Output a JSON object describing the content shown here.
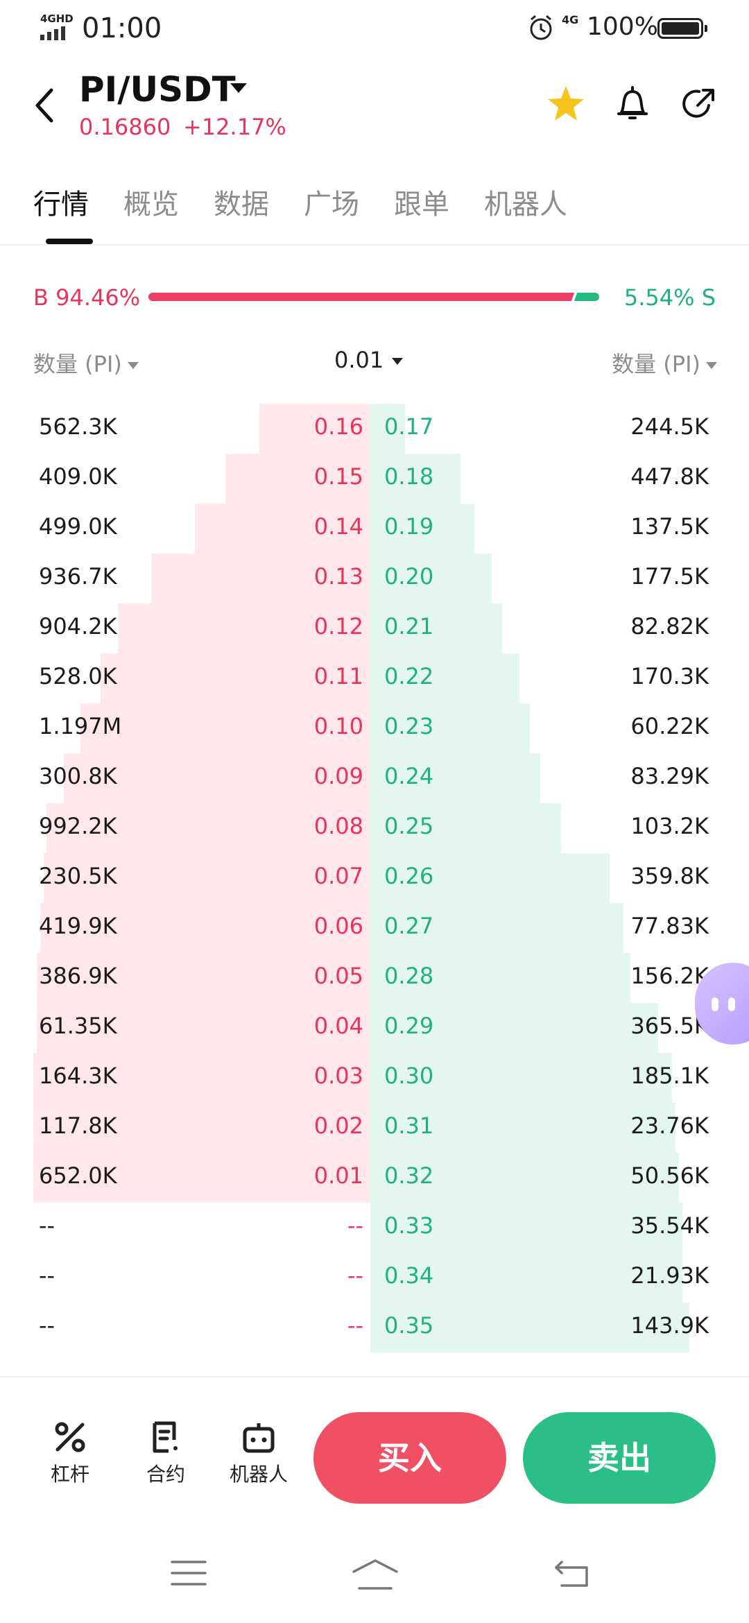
{
  "status_bar": {
    "network": "4GHD",
    "time": "01:00",
    "lte": "4G",
    "battery": "100%"
  },
  "header": {
    "pair": "PI/USDT",
    "price": "0.16860",
    "change": "+12.17%"
  },
  "tabs": [
    "行情",
    "概览",
    "数据",
    "广场",
    "跟单",
    "机器人"
  ],
  "ratio": {
    "buy_label": "B 94.46%",
    "sell_label": "5.54% S",
    "buy_fraction": 0.9446
  },
  "columns": {
    "left": "数量 (PI)",
    "precision": "0.01",
    "right": "数量 (PI)"
  },
  "order_book": {
    "rows": [
      {
        "bid_qty": "562.3K",
        "bid_price": "0.16",
        "ask_price": "0.17",
        "ask_qty": "244.5K",
        "bid_depth": 0.33,
        "ask_depth": 0.1
      },
      {
        "bid_qty": "409.0K",
        "bid_price": "0.15",
        "ask_price": "0.18",
        "ask_qty": "447.8K",
        "bid_depth": 0.43,
        "ask_depth": 0.26
      },
      {
        "bid_qty": "499.0K",
        "bid_price": "0.14",
        "ask_price": "0.19",
        "ask_qty": "137.5K",
        "bid_depth": 0.52,
        "ask_depth": 0.3
      },
      {
        "bid_qty": "936.7K",
        "bid_price": "0.13",
        "ask_price": "0.20",
        "ask_qty": "177.5K",
        "bid_depth": 0.65,
        "ask_depth": 0.35
      },
      {
        "bid_qty": "904.2K",
        "bid_price": "0.12",
        "ask_price": "0.21",
        "ask_qty": "82.82K",
        "bid_depth": 0.75,
        "ask_depth": 0.38
      },
      {
        "bid_qty": "528.0K",
        "bid_price": "0.11",
        "ask_price": "0.22",
        "ask_qty": "170.3K",
        "bid_depth": 0.8,
        "ask_depth": 0.43
      },
      {
        "bid_qty": "1.197M",
        "bid_price": "0.10",
        "ask_price": "0.23",
        "ask_qty": "60.22K",
        "bid_depth": 0.86,
        "ask_depth": 0.46
      },
      {
        "bid_qty": "300.8K",
        "bid_price": "0.09",
        "ask_price": "0.24",
        "ask_qty": "83.29K",
        "bid_depth": 0.91,
        "ask_depth": 0.49
      },
      {
        "bid_qty": "992.2K",
        "bid_price": "0.08",
        "ask_price": "0.25",
        "ask_qty": "103.2K",
        "bid_depth": 0.96,
        "ask_depth": 0.55
      },
      {
        "bid_qty": "230.5K",
        "bid_price": "0.07",
        "ask_price": "0.26",
        "ask_qty": "359.8K",
        "bid_depth": 0.97,
        "ask_depth": 0.69
      },
      {
        "bid_qty": "419.9K",
        "bid_price": "0.06",
        "ask_price": "0.27",
        "ask_qty": "77.83K",
        "bid_depth": 0.98,
        "ask_depth": 0.73
      },
      {
        "bid_qty": "386.9K",
        "bid_price": "0.05",
        "ask_price": "0.28",
        "ask_qty": "156.2K",
        "bid_depth": 0.99,
        "ask_depth": 0.75
      },
      {
        "bid_qty": "61.35K",
        "bid_price": "0.04",
        "ask_price": "0.29",
        "ask_qty": "365.5K",
        "bid_depth": 0.99,
        "ask_depth": 0.83
      },
      {
        "bid_qty": "164.3K",
        "bid_price": "0.03",
        "ask_price": "0.30",
        "ask_qty": "185.1K",
        "bid_depth": 1.0,
        "ask_depth": 0.87
      },
      {
        "bid_qty": "117.8K",
        "bid_price": "0.02",
        "ask_price": "0.31",
        "ask_qty": "23.76K",
        "bid_depth": 1.0,
        "ask_depth": 0.88
      },
      {
        "bid_qty": "652.0K",
        "bid_price": "0.01",
        "ask_price": "0.32",
        "ask_qty": "50.56K",
        "bid_depth": 1.0,
        "ask_depth": 0.89
      },
      {
        "bid_qty": "--",
        "bid_price": "--",
        "ask_price": "0.33",
        "ask_qty": "35.54K",
        "bid_depth": 0,
        "ask_depth": 0.9
      },
      {
        "bid_qty": "--",
        "bid_price": "--",
        "ask_price": "0.34",
        "ask_qty": "21.93K",
        "bid_depth": 0,
        "ask_depth": 0.9
      },
      {
        "bid_qty": "--",
        "bid_price": "--",
        "ask_price": "0.35",
        "ask_qty": "143.9K",
        "bid_depth": 0,
        "ask_depth": 0.92
      }
    ]
  },
  "actions": {
    "leverage": "杠杆",
    "contract": "合约",
    "bot": "机器人",
    "buy": "买入",
    "sell": "卖出"
  },
  "colors": {
    "buy": "#f05063",
    "sell": "#2bbf87",
    "price_red": "#e5355d",
    "price_green": "#21b07f",
    "bid_bg": "#ffe7eb",
    "ask_bg": "#e3f7ee"
  },
  "icons": [
    "back-icon",
    "dropdown-icon",
    "star-icon",
    "bell-icon",
    "share-icon",
    "leverage-icon",
    "contract-icon",
    "robot-icon",
    "menu-icon",
    "home-icon",
    "return-icon",
    "alarm-icon",
    "battery-icon"
  ]
}
